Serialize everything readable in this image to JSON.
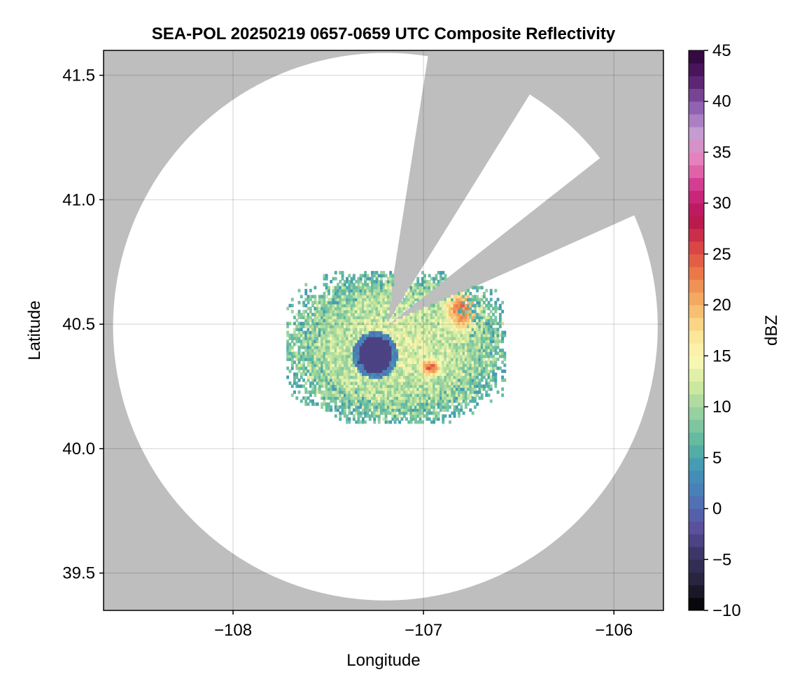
{
  "chart_data": {
    "type": "heatmap",
    "title": "SEA-POL 20250219 0657-0659 UTC Composite Reflectivity",
    "xlabel": "Longitude",
    "ylabel": "Latitude",
    "xlim": [
      -108.68,
      -105.74
    ],
    "ylim": [
      39.35,
      41.6
    ],
    "xticks": [
      -108,
      -107,
      -106
    ],
    "xtick_labels": [
      "−108",
      "−107",
      "−106"
    ],
    "yticks": [
      39.5,
      40.0,
      40.5,
      41.0,
      41.5
    ],
    "ytick_labels": [
      "39.5",
      "40.0",
      "40.5",
      "41.0",
      "41.5"
    ],
    "grid": true,
    "background_color": "#bebebe",
    "radar": {
      "center": [
        -107.2,
        40.49
      ],
      "range_lon": 1.43,
      "range_lat": 1.1,
      "blocked_sectors_deg": [
        [
          9,
          32
        ],
        [
          52,
          66
        ]
      ]
    },
    "field_summary": {
      "core": {
        "center": [
          -107.26,
          40.37
        ],
        "value_dbz": -3
      },
      "east_maximum": {
        "center": [
          -106.8,
          40.55
        ],
        "value_dbz": 23
      },
      "south_maximum": {
        "center": [
          -106.97,
          40.32
        ],
        "value_dbz": 24
      },
      "extent_lon": [
        -107.72,
        -106.57
      ],
      "extent_lat": [
        40.1,
        40.71
      ]
    },
    "colorbar": {
      "label": "dBZ",
      "min": -10,
      "max": 45,
      "step": 1.25,
      "ticks": [
        -10,
        -5,
        0,
        5,
        10,
        15,
        20,
        25,
        30,
        35,
        40,
        45
      ],
      "tick_labels": [
        "−10",
        "−5",
        "0",
        "5",
        "10",
        "15",
        "20",
        "25",
        "30",
        "35",
        "40",
        "45"
      ],
      "colormap": [
        "#000000",
        "#26223a",
        "#3b3566",
        "#5b51a0",
        "#4f76b8",
        "#3f94b7",
        "#5cb8a0",
        "#93d0a0",
        "#cde99e",
        "#fbf9b6",
        "#fce090",
        "#f5b066",
        "#ec7b49",
        "#d84345",
        "#b5134f",
        "#cd2c86",
        "#e97cba",
        "#c89fd2",
        "#8e5fb0",
        "#551d6c",
        "#2c0537"
      ]
    }
  }
}
